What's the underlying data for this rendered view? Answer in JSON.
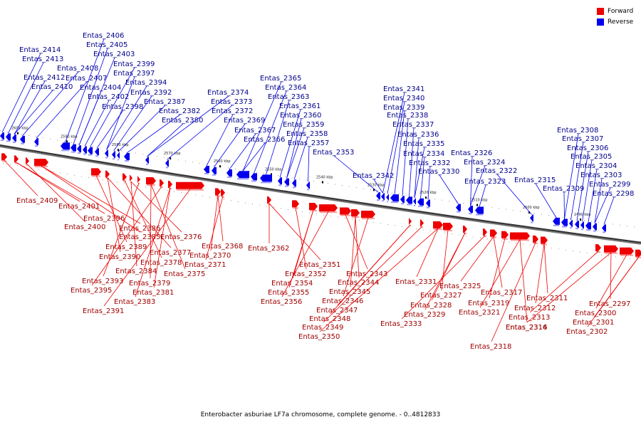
{
  "legend": {
    "forward_label": "Forward",
    "reverse_label": "Reverse",
    "forward_color": "#ee0000",
    "reverse_color": "#0000ee"
  },
  "caption": "Enterobacter asburiae LF7a chromosome, complete genome. - 0..4812833",
  "kbp_ticks": [
    "2600 kbp",
    "2590 kbp",
    "2580 kbp",
    "2570 kbp",
    "2560 kbp",
    "2550 kbp",
    "2540 kbp",
    "2530 kbp",
    "2520 kbp",
    "2510 kbp",
    "2500 kbp",
    "2490 kbp"
  ],
  "reverse_labels": [
    "Entas_2414",
    "Entas_2413",
    "Entas_2412",
    "Entas_2410",
    "Entas_2408",
    "Entas_2407",
    "Entas_2406",
    "Entas_2405",
    "Entas_2404",
    "Entas_2403",
    "Entas_2402",
    "Entas_2399",
    "Entas_2398",
    "Entas_2397",
    "Entas_2394",
    "Entas_2392",
    "Entas_2387",
    "Entas_2382",
    "Entas_2380",
    "Entas_2374",
    "Entas_2373",
    "Entas_2372",
    "Entas_2369",
    "Entas_2367",
    "Entas_2366",
    "Entas_2365",
    "Entas_2364",
    "Entas_2363",
    "Entas_2361",
    "Entas_2360",
    "Entas_2359",
    "Entas_2358",
    "Entas_2357",
    "Entas_2353",
    "Entas_2342",
    "Entas_2341",
    "Entas_2340",
    "Entas_2339",
    "Entas_2338",
    "Entas_2337",
    "Entas_2336",
    "Entas_2335",
    "Entas_2334",
    "Entas_2332",
    "Entas_2330",
    "Entas_2326",
    "Entas_2324",
    "Entas_2323",
    "Entas_2322",
    "Entas_2315",
    "Entas_2309",
    "Entas_2308",
    "Entas_2307",
    "Entas_2306",
    "Entas_2305",
    "Entas_2304",
    "Entas_2303",
    "Entas_2299",
    "Entas_2298"
  ],
  "forward_labels": [
    "Entas_2409",
    "Entas_2401",
    "Entas_2396",
    "Entas_2400",
    "Entas_2386",
    "Entas_2385",
    "Entas_2389",
    "Entas_2390",
    "Entas_2377",
    "Entas_2378",
    "Entas_2376",
    "Entas_2384",
    "Entas_2393",
    "Entas_2379",
    "Entas_2375",
    "Entas_2395",
    "Entas_2381",
    "Entas_2383",
    "Entas_2391",
    "Entas_2368",
    "Entas_2370",
    "Entas_2371",
    "Entas_2362",
    "Entas_2351",
    "Entas_2352",
    "Entas_2354",
    "Entas_2355",
    "Entas_2356",
    "Entas_2343",
    "Entas_2344",
    "Entas_2345",
    "Entas_2346",
    "Entas_2347",
    "Entas_2348",
    "Entas_2349",
    "Entas_2350",
    "Entas_2331",
    "Entas_2327",
    "Entas_2328",
    "Entas_2329",
    "Entas_2333",
    "Entas_2325",
    "Entas_2317",
    "Entas_2319",
    "Entas_2321",
    "Entas_2316",
    "Entas_2318",
    "Entas_2311",
    "Entas_2312",
    "Entas_2313",
    "Entas_2314",
    "Entas_2297",
    "Entas_2300",
    "Entas_2301",
    "Entas_2302"
  ]
}
